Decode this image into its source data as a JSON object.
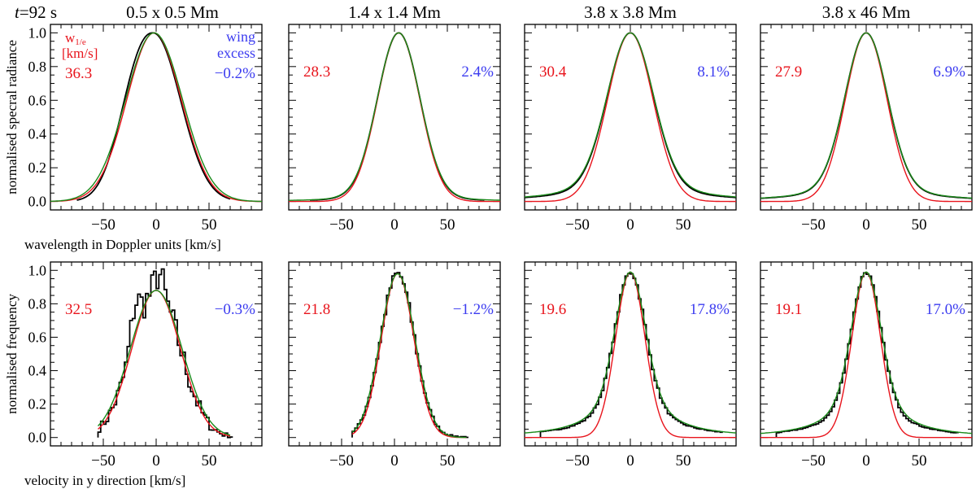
{
  "figure": {
    "time_prefix": "t",
    "time_suffix": "=92 s",
    "top_titles": [
      "0.5 x 0.5 Mm",
      "1.4 x 1.4 Mm",
      "3.8 x 3.8 Mm",
      "3.8 x 46 Mm"
    ],
    "legend_width_label_main": "w",
    "legend_width_label_sub": "1/e",
    "legend_width_units": "[km/s]",
    "legend_wing_line1": "wing",
    "legend_wing_line2": "excess",
    "colors": {
      "width": "#e8141c",
      "wing": "#3c3cf0",
      "green": "#1a8a1a",
      "black": "#000000"
    }
  },
  "chart_data": [
    {
      "type": "line",
      "panel": "top-1",
      "ylabel": "normalised specral radiance",
      "xlabel": "wavelength in Doppler units [km/s]",
      "xlim": [
        -100,
        100
      ],
      "ylim": [
        -0.05,
        1.05
      ],
      "xticks": [
        -50,
        0,
        50
      ],
      "xtick_labels": [
        "−50",
        "0",
        "50"
      ],
      "yticks": [
        0.0,
        0.2,
        0.4,
        0.6,
        0.8,
        1.0
      ],
      "ytick_labels": [
        "0.0",
        "0.2",
        "0.4",
        "0.6",
        "0.8",
        "1.0"
      ],
      "width_value": "36.3",
      "wing_value": "−0.2%",
      "series": [
        {
          "name": "black",
          "kind": "smooth",
          "center": -3,
          "w": 36.3,
          "xmin": -75,
          "xmax": 70,
          "asym": 0.06
        },
        {
          "name": "red",
          "kind": "gauss",
          "center": -2,
          "w": 36.3,
          "xmin": -100,
          "xmax": 100
        },
        {
          "name": "green",
          "kind": "gauss",
          "center": -2,
          "w": 38.0,
          "xmin": -100,
          "xmax": 100
        }
      ]
    },
    {
      "type": "line",
      "panel": "top-2",
      "xlim": [
        -100,
        100
      ],
      "ylim": [
        -0.05,
        1.05
      ],
      "xticks": [
        -50,
        0,
        50
      ],
      "xtick_labels": [
        "−50",
        "0",
        "50"
      ],
      "width_value": "28.3",
      "wing_value": "2.4%",
      "series": [
        {
          "name": "black",
          "kind": "smooth",
          "center": 4,
          "w": 28.3,
          "xmin": -80,
          "xmax": 85,
          "wing": 0.02
        },
        {
          "name": "red",
          "kind": "gauss",
          "center": 4,
          "w": 28.3,
          "xmin": -100,
          "xmax": 100
        },
        {
          "name": "green",
          "kind": "voigt",
          "center": 4,
          "w": 28.3,
          "xmin": -100,
          "xmax": 100,
          "wing": 0.024
        }
      ]
    },
    {
      "type": "line",
      "panel": "top-3",
      "xlim": [
        -100,
        100
      ],
      "ylim": [
        -0.05,
        1.05
      ],
      "xticks": [
        -50,
        0,
        50
      ],
      "xtick_labels": [
        "−50",
        "0",
        "50"
      ],
      "width_value": "30.4",
      "wing_value": "8.1%",
      "series": [
        {
          "name": "black",
          "kind": "smooth",
          "center": 0,
          "w": 30.4,
          "xmin": -100,
          "xmax": 100,
          "wing": 0.07
        },
        {
          "name": "red",
          "kind": "gauss",
          "center": 0,
          "w": 30.4,
          "xmin": -100,
          "xmax": 100
        },
        {
          "name": "green",
          "kind": "voigt",
          "center": 0,
          "w": 30.4,
          "xmin": -100,
          "xmax": 100,
          "wing": 0.081
        }
      ]
    },
    {
      "type": "line",
      "panel": "top-4",
      "xlim": [
        -100,
        100
      ],
      "ylim": [
        -0.05,
        1.05
      ],
      "xticks": [
        -50,
        0,
        50
      ],
      "xtick_labels": [
        "−50",
        "0",
        "50"
      ],
      "width_value": "27.9",
      "wing_value": "6.9%",
      "series": [
        {
          "name": "black",
          "kind": "smooth",
          "center": 0,
          "w": 27.9,
          "xmin": -100,
          "xmax": 100,
          "wing": 0.065
        },
        {
          "name": "red",
          "kind": "gauss",
          "center": 0,
          "w": 27.9,
          "xmin": -100,
          "xmax": 100
        },
        {
          "name": "green",
          "kind": "voigt",
          "center": 0,
          "w": 27.9,
          "xmin": -100,
          "xmax": 100,
          "wing": 0.069
        }
      ]
    },
    {
      "type": "line",
      "panel": "bottom-1",
      "ylabel": "normalised frequency",
      "xlabel": "velocity in y direction  [km/s]",
      "xlim": [
        -100,
        100
      ],
      "ylim": [
        -0.05,
        1.05
      ],
      "xticks": [
        -50,
        0,
        50
      ],
      "xtick_labels": [
        "−50",
        "0",
        "50"
      ],
      "yticks": [
        0.0,
        0.2,
        0.4,
        0.6,
        0.8,
        1.0
      ],
      "ytick_labels": [
        "0.0",
        "0.2",
        "0.4",
        "0.6",
        "0.8",
        "1.0"
      ],
      "width_value": "32.5",
      "wing_value": "−0.3%",
      "series": [
        {
          "name": "black",
          "kind": "histogram",
          "center": 0,
          "w": 32.5,
          "peak": 0.88,
          "xmin": -55,
          "xmax": 70,
          "noise": 0.11,
          "bumps": [
            [
              -20,
              0.22,
              6
            ],
            [
              3,
              0.12,
              5
            ]
          ]
        },
        {
          "name": "red",
          "kind": "gauss",
          "center": 0,
          "w": 32.5,
          "peak": 0.88,
          "xmin": -55,
          "xmax": 70
        },
        {
          "name": "green",
          "kind": "gauss",
          "center": 0,
          "w": 34.5,
          "peak": 0.88,
          "xmin": -55,
          "xmax": 70
        }
      ]
    },
    {
      "type": "line",
      "panel": "bottom-2",
      "xlim": [
        -100,
        100
      ],
      "ylim": [
        -0.05,
        1.05
      ],
      "xticks": [
        -50,
        0,
        50
      ],
      "xtick_labels": [
        "−50",
        "0",
        "50"
      ],
      "width_value": "21.8",
      "wing_value": "−1.2%",
      "series": [
        {
          "name": "black",
          "kind": "histogram",
          "center": 3,
          "w": 22.5,
          "peak": 0.98,
          "xmin": -40,
          "xmax": 68,
          "noise": 0.03,
          "wing": 0.01
        },
        {
          "name": "red",
          "kind": "gauss",
          "center": 3,
          "w": 21.8,
          "peak": 0.98,
          "xmin": -40,
          "xmax": 68
        },
        {
          "name": "green",
          "kind": "gauss",
          "center": 3,
          "w": 23.2,
          "peak": 0.98,
          "xmin": -40,
          "xmax": 68
        }
      ]
    },
    {
      "type": "line",
      "panel": "bottom-3",
      "xlim": [
        -100,
        100
      ],
      "ylim": [
        -0.05,
        1.05
      ],
      "xticks": [
        -50,
        0,
        50
      ],
      "xtick_labels": [
        "−50",
        "0",
        "50"
      ],
      "width_value": "19.6",
      "wing_value": "17.8%",
      "series": [
        {
          "name": "black",
          "kind": "histogram",
          "center": 0,
          "w": 19.6,
          "peak": 0.99,
          "xmin": -85,
          "xmax": 85,
          "noise": 0.015,
          "wing": 0.16
        },
        {
          "name": "red",
          "kind": "gauss",
          "center": 0,
          "w": 19.6,
          "peak": 0.99,
          "xmin": -100,
          "xmax": 100
        },
        {
          "name": "green",
          "kind": "voigt",
          "center": 0,
          "w": 19.6,
          "peak": 0.99,
          "xmin": -100,
          "xmax": 100,
          "wing": 0.178
        }
      ]
    },
    {
      "type": "line",
      "panel": "bottom-4",
      "xlim": [
        -100,
        100
      ],
      "ylim": [
        -0.05,
        1.05
      ],
      "xticks": [
        -50,
        0,
        50
      ],
      "xtick_labels": [
        "−50",
        "0",
        "50"
      ],
      "width_value": "19.1",
      "wing_value": "17.0%",
      "series": [
        {
          "name": "black",
          "kind": "histogram",
          "center": 0,
          "w": 19.1,
          "peak": 0.99,
          "xmin": -85,
          "xmax": 85,
          "noise": 0.012,
          "wing": 0.15
        },
        {
          "name": "red",
          "kind": "gauss",
          "center": 0,
          "w": 19.1,
          "peak": 0.99,
          "xmin": -100,
          "xmax": 100
        },
        {
          "name": "green",
          "kind": "voigt",
          "center": 0,
          "w": 19.1,
          "peak": 0.99,
          "xmin": -100,
          "xmax": 100,
          "wing": 0.17
        }
      ]
    }
  ]
}
